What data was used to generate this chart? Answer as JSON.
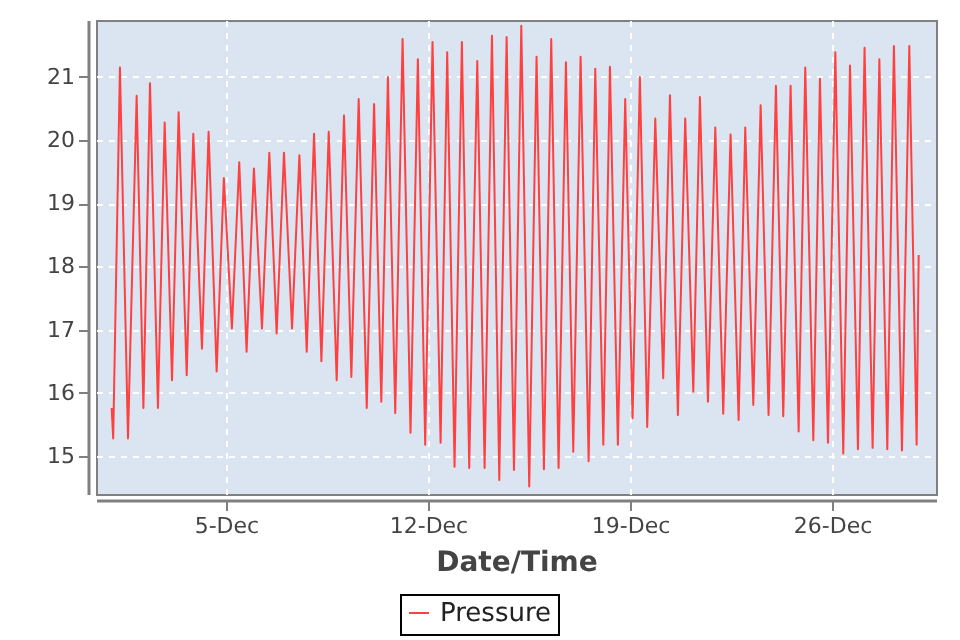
{
  "chart_data": {
    "type": "line",
    "xlabel": "Date/Time",
    "legend": "bottom",
    "grid": true,
    "marker": "none",
    "line_style": "solid",
    "xlim": [
      "--11-30T12:00",
      "--12-29T14:24"
    ],
    "ylim": [
      14.4,
      21.9
    ],
    "xticks": [
      {
        "value": "--12-05",
        "label": "5-Dec"
      },
      {
        "value": "--12-12",
        "label": "12-Dec"
      },
      {
        "value": "--12-19",
        "label": "19-Dec"
      },
      {
        "value": "--12-26",
        "label": "26-Dec"
      }
    ],
    "yticks": [
      15,
      16,
      17,
      18,
      19,
      20,
      21
    ],
    "x": [
      "--12-01T01:00",
      "--12-01T02:18",
      "--12-01T07:54",
      "--12-01T14:36",
      "--12-01T21:48",
      "--12-02T03:24",
      "--12-02T08:54",
      "--12-02T15:30",
      "--12-02T21:06",
      "--12-03T03:12",
      "--12-03T08:42",
      "--12-03T15:24",
      "--12-03T20:54",
      "--12-04T04:06",
      "--12-04T09:36",
      "--12-04T16:18",
      "--12-04T22:18",
      "--12-05T05:00",
      "--12-05T11:06",
      "--12-05T17:12",
      "--12-05T23:18",
      "--12-06T06:00",
      "--12-06T12:06",
      "--12-06T18:12",
      "--12-07T00:18",
      "--12-07T07:00",
      "--12-07T13:06",
      "--12-07T19:12",
      "--12-08T01:18",
      "--12-08T07:24",
      "--12-08T13:30",
      "--12-08T20:06",
      "--12-09T02:12",
      "--12-09T08:18",
      "--12-09T14:24",
      "--12-09T21:06",
      "--12-10T03:12",
      "--12-10T09:12",
      "--12-10T14:42",
      "--12-10T20:48",
      "--12-11T02:54",
      "--12-11T09:30",
      "--12-11T15:36",
      "--12-11T21:42",
      "--12-12T03:48",
      "--12-12T10:30",
      "--12-12T16:00",
      "--12-12T22:06",
      "--12-13T04:12",
      "--12-13T10:18",
      "--12-13T17:00",
      "--12-13T23:06",
      "--12-14T05:12",
      "--12-14T11:18",
      "--12-14T17:24",
      "--12-14T23:30",
      "--12-15T05:36",
      "--12-15T12:12",
      "--12-15T18:18",
      "--12-16T00:24",
      "--12-16T06:30",
      "--12-16T12:36",
      "--12-16T18:42",
      "--12-17T00:48",
      "--12-17T06:54",
      "--12-17T13:36",
      "--12-17T19:06",
      "--12-18T01:48",
      "--12-18T07:18",
      "--12-18T13:54",
      "--12-18T20:00",
      "--12-19T02:06",
      "--12-19T08:12",
      "--12-19T14:18",
      "--12-19T21:00",
      "--12-20T03:36",
      "--12-20T09:12",
      "--12-20T15:48",
      "--12-20T21:54",
      "--12-21T04:36",
      "--12-21T10:06",
      "--12-21T16:48",
      "--12-21T22:54",
      "--12-22T05:30",
      "--12-22T11:36",
      "--12-22T18:18",
      "--12-22T23:48",
      "--12-23T06:30",
      "--12-23T12:36",
      "--12-23T19:12",
      "--12-24T01:18",
      "--12-24T07:24",
      "--12-24T13:30",
      "--12-24T20:12",
      "--12-25T01:42",
      "--12-25T08:24",
      "--12-25T13:54",
      "--12-25T20:36",
      "--12-26T02:42",
      "--12-26T09:18",
      "--12-26T14:54",
      "--12-26T21:30",
      "--12-27T03:00",
      "--12-27T09:42",
      "--12-27T15:18",
      "--12-27T21:54",
      "--12-28T03:24",
      "--12-28T10:06",
      "--12-28T16:12",
      "--12-28T22:18",
      "--12-29T00:00"
    ],
    "series": [
      {
        "name": "Pressure",
        "color": "#ff4040",
        "values": [
          15.76,
          15.28,
          21.15,
          15.28,
          20.7,
          15.76,
          20.9,
          15.76,
          20.28,
          16.2,
          20.44,
          16.28,
          20.1,
          16.7,
          20.13,
          16.34,
          19.4,
          17.02,
          19.65,
          16.65,
          19.55,
          17.02,
          19.8,
          16.94,
          19.8,
          17.02,
          19.76,
          16.65,
          20.1,
          16.5,
          20.13,
          16.2,
          20.39,
          16.25,
          20.65,
          15.76,
          20.57,
          15.86,
          21.0,
          15.68,
          21.6,
          15.37,
          21.28,
          15.18,
          21.55,
          15.21,
          21.39,
          14.83,
          21.55,
          14.81,
          21.25,
          14.81,
          21.65,
          14.62,
          21.63,
          14.78,
          21.81,
          14.52,
          21.32,
          14.79,
          21.6,
          14.81,
          21.23,
          15.07,
          21.32,
          14.92,
          21.13,
          15.18,
          21.16,
          15.18,
          20.65,
          15.6,
          21.0,
          15.46,
          20.34,
          16.23,
          20.71,
          15.65,
          20.34,
          16.02,
          20.68,
          15.86,
          20.2,
          15.67,
          20.09,
          15.57,
          20.2,
          15.81,
          20.55,
          15.65,
          20.86,
          15.63,
          20.86,
          15.39,
          21.15,
          15.25,
          20.97,
          15.21,
          21.39,
          15.04,
          21.18,
          15.11,
          21.46,
          15.13,
          21.28,
          15.11,
          21.49,
          15.09,
          21.49,
          15.18,
          18.18
        ]
      }
    ]
  }
}
